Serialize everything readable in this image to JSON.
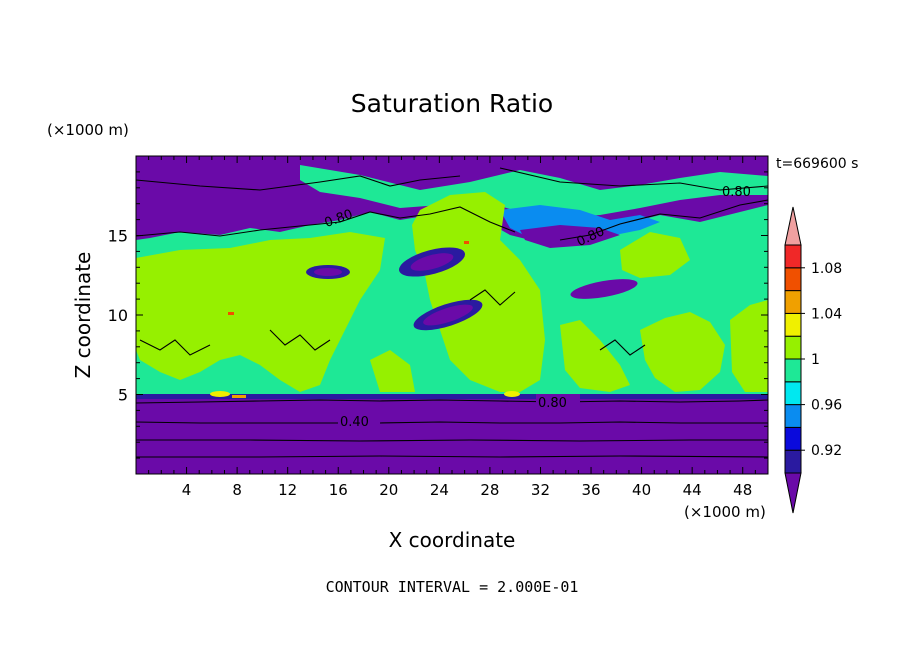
{
  "chart_data": {
    "type": "heatmap",
    "title": "Saturation Ratio",
    "time_label": "t=669600 s",
    "xlabel": "X coordinate",
    "ylabel": "Z coordinate",
    "x_unit": "(×1000 m)",
    "y_unit": "(×1000 m)",
    "xlim": [
      0,
      50
    ],
    "ylim": [
      0,
      20
    ],
    "x_ticks": [
      4,
      8,
      12,
      16,
      20,
      24,
      28,
      32,
      36,
      40,
      44,
      48
    ],
    "y_ticks": [
      5,
      10,
      15
    ],
    "footer": "CONTOUR INTERVAL = 2.000E-01",
    "colorbar": {
      "levels": [
        0.9,
        0.92,
        0.94,
        0.96,
        0.98,
        1.0,
        1.02,
        1.04,
        1.06,
        1.08,
        1.1
      ],
      "labeled": [
        "0.92",
        "0.96",
        "1",
        "1.04",
        "1.08"
      ],
      "colors": [
        "#6a0aa8",
        "#2a1aa0",
        "#0a0adc",
        "#0a8cf0",
        "#00e8f0",
        "#1ee896",
        "#96f000",
        "#f0f000",
        "#f0a000",
        "#f05000",
        "#f02828",
        "#f0a0a0"
      ]
    },
    "contour_labels": [
      "0.80",
      "0.80",
      "0.80",
      "0.80",
      "0.40"
    ]
  }
}
